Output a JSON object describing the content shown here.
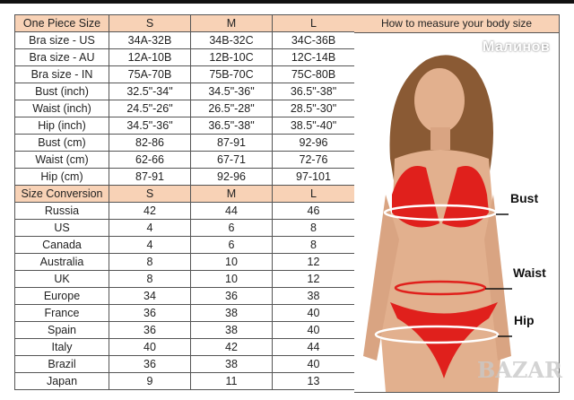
{
  "watermarks": {
    "top": "Малинов",
    "bottom": "BAZAR"
  },
  "size_table": {
    "header": [
      "One Piece Size",
      "S",
      "M",
      "L"
    ],
    "rows": [
      [
        "Bra size - US",
        "34A-32B",
        "34B-32C",
        "34C-36B"
      ],
      [
        "Bra size - AU",
        "12A-10B",
        "12B-10C",
        "12C-14B"
      ],
      [
        "Bra size - IN",
        "75A-70B",
        "75B-70C",
        "75C-80B"
      ],
      [
        "Bust (inch)",
        "32.5\"-34\"",
        "34.5\"-36\"",
        "36.5\"-38\""
      ],
      [
        "Waist (inch)",
        "24.5\"-26\"",
        "26.5\"-28\"",
        "28.5\"-30\""
      ],
      [
        "Hip (inch)",
        "34.5\"-36\"",
        "36.5\"-38\"",
        "38.5\"-40\""
      ],
      [
        "Bust (cm)",
        "82-86",
        "87-91",
        "92-96"
      ],
      [
        "Waist (cm)",
        "62-66",
        "67-71",
        "72-76"
      ],
      [
        "Hip (cm)",
        "87-91",
        "92-96",
        "97-101"
      ]
    ]
  },
  "conversion_table": {
    "header": [
      "Size Conversion",
      "S",
      "M",
      "L"
    ],
    "rows": [
      [
        "Russia",
        "42",
        "44",
        "46"
      ],
      [
        "US",
        "4",
        "6",
        "8"
      ],
      [
        "Canada",
        "4",
        "6",
        "8"
      ],
      [
        "Australia",
        "8",
        "10",
        "12"
      ],
      [
        "UK",
        "8",
        "10",
        "12"
      ],
      [
        "Europe",
        "34",
        "36",
        "38"
      ],
      [
        "France",
        "36",
        "38",
        "40"
      ],
      [
        "Spain",
        "36",
        "38",
        "40"
      ],
      [
        "Italy",
        "40",
        "42",
        "44"
      ],
      [
        "Brazil",
        "36",
        "38",
        "40"
      ],
      [
        "Japan",
        "9",
        "11",
        "13"
      ]
    ]
  },
  "measure_panel": {
    "title": "How to measure your body size",
    "labels": {
      "bust": "Bust",
      "waist": "Waist",
      "hip": "Hip"
    }
  },
  "colors": {
    "header_bg": "#f8d2b6",
    "bikini": "#e0201c",
    "skin": "#e2b08e",
    "hair": "#8a5a34"
  }
}
